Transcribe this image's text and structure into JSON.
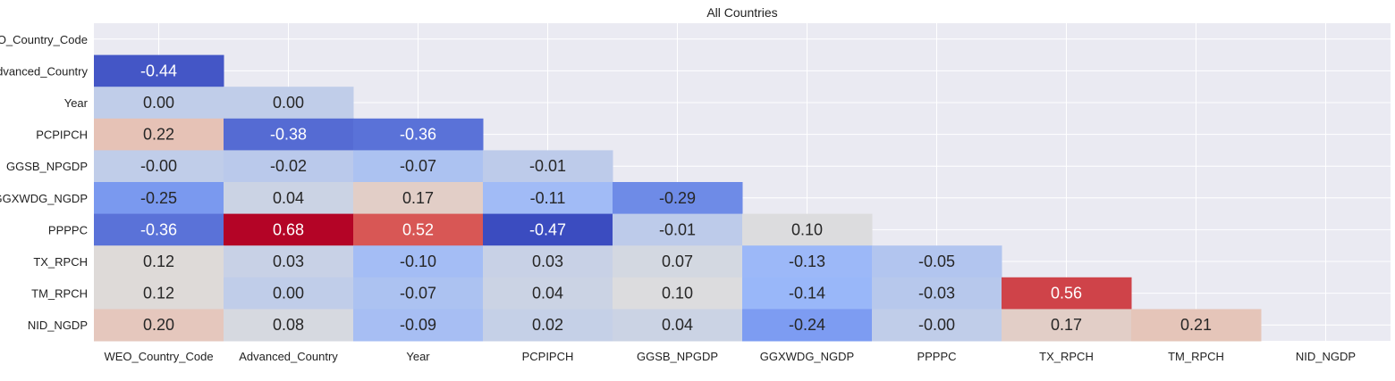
{
  "chart_data": {
    "type": "heatmap",
    "title": "All Countries",
    "xlabel": "",
    "ylabel": "",
    "colormap": "coolwarm",
    "vmin": -0.47,
    "vmax": 0.68,
    "grid": true,
    "mask": "upper-triangle-including-diagonal",
    "x_labels": [
      "WEO_Country_Code",
      "Advanced_Country",
      "Year",
      "PCPIPCH",
      "GGSB_NPGDP",
      "GGXWDG_NGDP",
      "PPPPC",
      "TX_RPCH",
      "TM_RPCH",
      "NID_NGDP"
    ],
    "y_labels": [
      "WEO_Country_Code",
      "Advanced_Country",
      "Year",
      "PCPIPCH",
      "GGSB_NPGDP",
      "GGXWDG_NGDP",
      "PPPPC",
      "TX_RPCH",
      "TM_RPCH",
      "NID_NGDP"
    ],
    "values": [
      [],
      [
        -0.44
      ],
      [
        0.0,
        0.0
      ],
      [
        0.22,
        -0.38,
        -0.36
      ],
      [
        -0.0,
        -0.02,
        -0.07,
        -0.01
      ],
      [
        -0.25,
        0.04,
        0.17,
        -0.11,
        -0.29
      ],
      [
        -0.36,
        0.68,
        0.52,
        -0.47,
        -0.01,
        0.1
      ],
      [
        0.12,
        0.03,
        -0.1,
        0.03,
        0.07,
        -0.13,
        -0.05
      ],
      [
        0.12,
        0.0,
        -0.07,
        0.04,
        0.1,
        -0.14,
        -0.03,
        0.56
      ],
      [
        0.2,
        0.08,
        -0.09,
        0.02,
        0.04,
        -0.24,
        -0.0,
        0.17,
        0.21
      ]
    ],
    "labels": [
      [],
      [
        "-0.44"
      ],
      [
        "0.00",
        "0.00"
      ],
      [
        "0.22",
        "-0.38",
        "-0.36"
      ],
      [
        "-0.00",
        "-0.02",
        "-0.07",
        "-0.01"
      ],
      [
        "-0.25",
        "0.04",
        "0.17",
        "-0.11",
        "-0.29"
      ],
      [
        "-0.36",
        "0.68",
        "0.52",
        "-0.47",
        "-0.01",
        "0.10"
      ],
      [
        "0.12",
        "0.03",
        "-0.10",
        "0.03",
        "0.07",
        "-0.13",
        "-0.05"
      ],
      [
        "0.12",
        "0.00",
        "-0.07",
        "0.04",
        "0.10",
        "-0.14",
        "-0.03",
        "0.56"
      ],
      [
        "0.20",
        "0.08",
        "-0.09",
        "0.02",
        "0.04",
        "-0.24",
        "-0.00",
        "0.17",
        "0.21"
      ]
    ],
    "colors": {
      "plot_background": "#eaeaf2",
      "grid": "#ffffff",
      "text_dark": "#262626",
      "text_light": "#ffffff"
    }
  }
}
